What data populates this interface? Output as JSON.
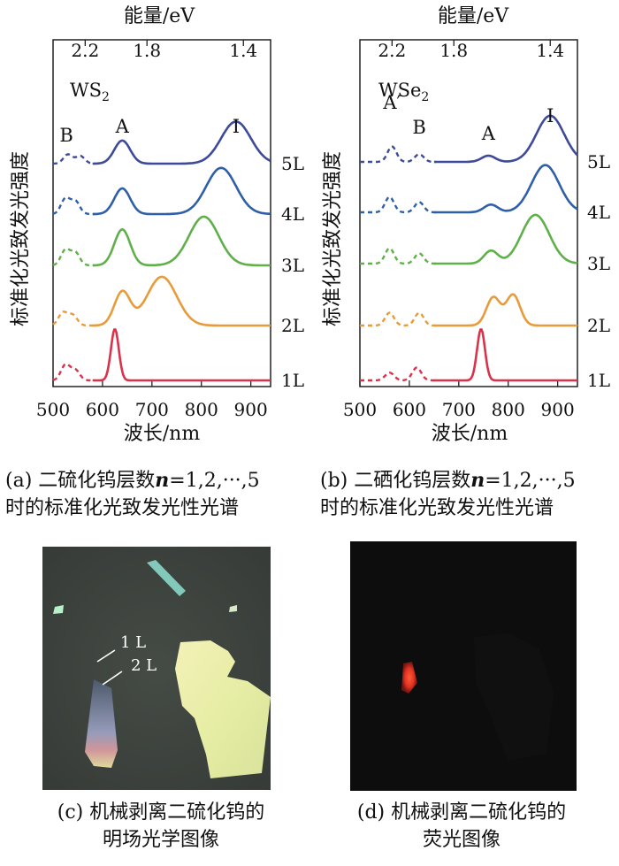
{
  "energy_axis_label": "能量/eV",
  "wavelength_axis_label": "波长/nm",
  "y_axis_label": "标准化光致发光强度",
  "layer_labels": [
    "5L",
    "4L",
    "3L",
    "2L",
    "1L"
  ],
  "colors": {
    "blue": "#3e4a9a",
    "blue2": "#2f5fa8",
    "green": "#5fb04a",
    "orange": "#e99a3a",
    "red": "#d9324a"
  },
  "chart_data": [
    {
      "type": "line",
      "material": "WS₂",
      "x_range": [
        500,
        940
      ],
      "x_ticks": [
        500,
        600,
        700,
        800,
        900
      ],
      "top_ticks": [
        "2.2",
        "1.8",
        "1.4"
      ],
      "peak_labels": [
        "B",
        "A",
        "I"
      ],
      "series": [
        {
          "name": "5L",
          "peaks_nm": [
            [
              530,
              0.18
            ],
            [
              555,
              0.15
            ],
            [
              640,
              0.45
            ],
            [
              870,
              0.82
            ]
          ]
        },
        {
          "name": "4L",
          "peaks_nm": [
            [
              525,
              0.3
            ],
            [
              545,
              0.25
            ],
            [
              640,
              0.5
            ],
            [
              840,
              0.9
            ]
          ]
        },
        {
          "name": "3L",
          "peaks_nm": [
            [
              525,
              0.3
            ],
            [
              545,
              0.25
            ],
            [
              640,
              0.7
            ],
            [
              805,
              0.95
            ]
          ]
        },
        {
          "name": "2L",
          "peaks_nm": [
            [
              520,
              0.25
            ],
            [
              540,
              0.2
            ],
            [
              640,
              0.65
            ],
            [
              720,
              0.95
            ]
          ]
        },
        {
          "name": "1L",
          "peaks_nm": [
            [
              525,
              0.3
            ],
            [
              545,
              0.2
            ],
            [
              625,
              1.0
            ]
          ]
        }
      ]
    },
    {
      "type": "line",
      "material": "WSe₂",
      "x_range": [
        500,
        940
      ],
      "x_ticks": [
        500,
        600,
        700,
        800,
        900
      ],
      "top_ticks": [
        "2.2",
        "1.8",
        "1.4"
      ],
      "peak_labels": [
        "A′",
        "B",
        "A",
        "I"
      ],
      "series": [
        {
          "name": "5L",
          "peaks_nm": [
            [
              565,
              0.3
            ],
            [
              620,
              0.15
            ],
            [
              760,
              0.12
            ],
            [
              885,
              0.9
            ]
          ]
        },
        {
          "name": "4L",
          "peaks_nm": [
            [
              560,
              0.3
            ],
            [
              620,
              0.2
            ],
            [
              765,
              0.15
            ],
            [
              875,
              0.92
            ]
          ]
        },
        {
          "name": "3L",
          "peaks_nm": [
            [
              560,
              0.3
            ],
            [
              620,
              0.2
            ],
            [
              765,
              0.25
            ],
            [
              855,
              0.95
            ]
          ]
        },
        {
          "name": "2L",
          "peaks_nm": [
            [
              560,
              0.25
            ],
            [
              620,
              0.25
            ],
            [
              770,
              0.55
            ],
            [
              810,
              0.6
            ]
          ]
        },
        {
          "name": "1L",
          "peaks_nm": [
            [
              560,
              0.15
            ],
            [
              615,
              0.25
            ],
            [
              745,
              1.0
            ]
          ]
        }
      ]
    }
  ],
  "captions": {
    "a_line1": "(a) 二硫化钨层数n=1,2,···,5",
    "a_line2": "时的标准化光致发光性光谱",
    "b_line1": "(b) 二硒化钨层数n=1,2,···,5",
    "b_line2": "时的标准化光致发光性光谱",
    "c_line1": "(c) 机械剥离二硫化钨的",
    "c_line2": "明场光学图像",
    "d_line1": "(d) 机械剥离二硫化钨的",
    "d_line2": "荧光图像"
  },
  "photo_c": {
    "label_1l": "1 L",
    "label_2l": "2 L"
  }
}
